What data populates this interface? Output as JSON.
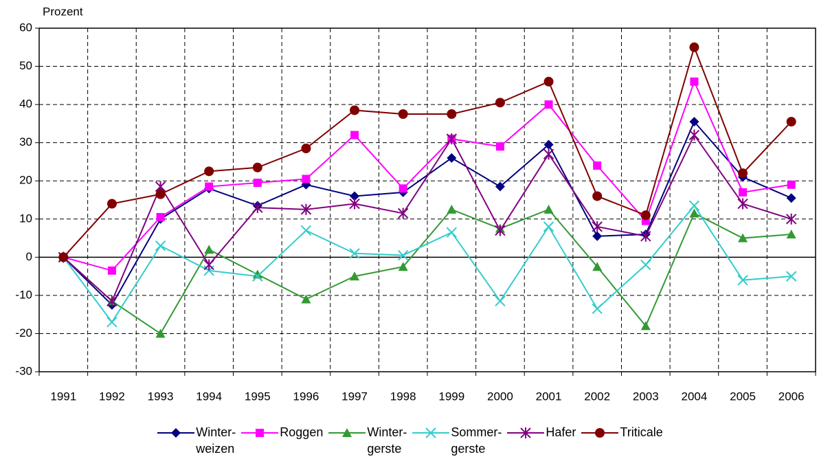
{
  "chart_data": {
    "type": "line",
    "y_label": "Prozent",
    "categories": [
      "1991",
      "1992",
      "1993",
      "1994",
      "1995",
      "1996",
      "1997",
      "1998",
      "1999",
      "2000",
      "2001",
      "2002",
      "2003",
      "2004",
      "2005",
      "2006"
    ],
    "ylim": [
      -30,
      60
    ],
    "yticks": [
      -30,
      -20,
      -10,
      0,
      10,
      20,
      30,
      40,
      50,
      60
    ],
    "grid": true,
    "series": [
      {
        "name": "Winter-\nweizen",
        "color": "#000080",
        "marker": "diamond",
        "values": [
          0,
          -12.5,
          10,
          18,
          13.5,
          19,
          16,
          17,
          26,
          18.5,
          29.5,
          5.5,
          6,
          35.5,
          21,
          15.5
        ]
      },
      {
        "name": "Roggen",
        "color": "#ff00ff",
        "marker": "square",
        "values": [
          0,
          -3.5,
          10.5,
          18.5,
          19.5,
          20.5,
          32,
          18,
          31,
          29,
          40,
          24,
          9.5,
          46,
          17,
          19
        ]
      },
      {
        "name": "Winter-\ngerste",
        "color": "#339933",
        "marker": "triangle",
        "values": [
          0,
          -11.5,
          -20,
          2,
          -4.5,
          -11,
          -5,
          -2.5,
          12.5,
          7.5,
          12.5,
          -2.5,
          -18,
          11.5,
          5,
          6
        ]
      },
      {
        "name": "Sommer-\ngerste",
        "color": "#33cccc",
        "marker": "x",
        "values": [
          0,
          -17,
          3,
          -3.5,
          -5,
          7,
          1,
          0.5,
          6.5,
          -11.5,
          8,
          -13.5,
          -2,
          13.5,
          -6,
          -5
        ]
      },
      {
        "name": "Hafer",
        "color": "#800080",
        "marker": "star",
        "values": [
          0,
          -11.5,
          18.5,
          -2,
          13,
          12.5,
          14,
          11.5,
          31,
          7,
          27,
          8,
          5.5,
          32,
          14,
          10
        ]
      },
      {
        "name": "Triticale",
        "color": "#800000",
        "marker": "circle",
        "values": [
          0,
          14,
          16.5,
          22.5,
          23.5,
          28.5,
          38.5,
          37.5,
          37.5,
          40.5,
          46,
          16,
          11,
          55,
          22,
          35.5
        ]
      }
    ]
  }
}
